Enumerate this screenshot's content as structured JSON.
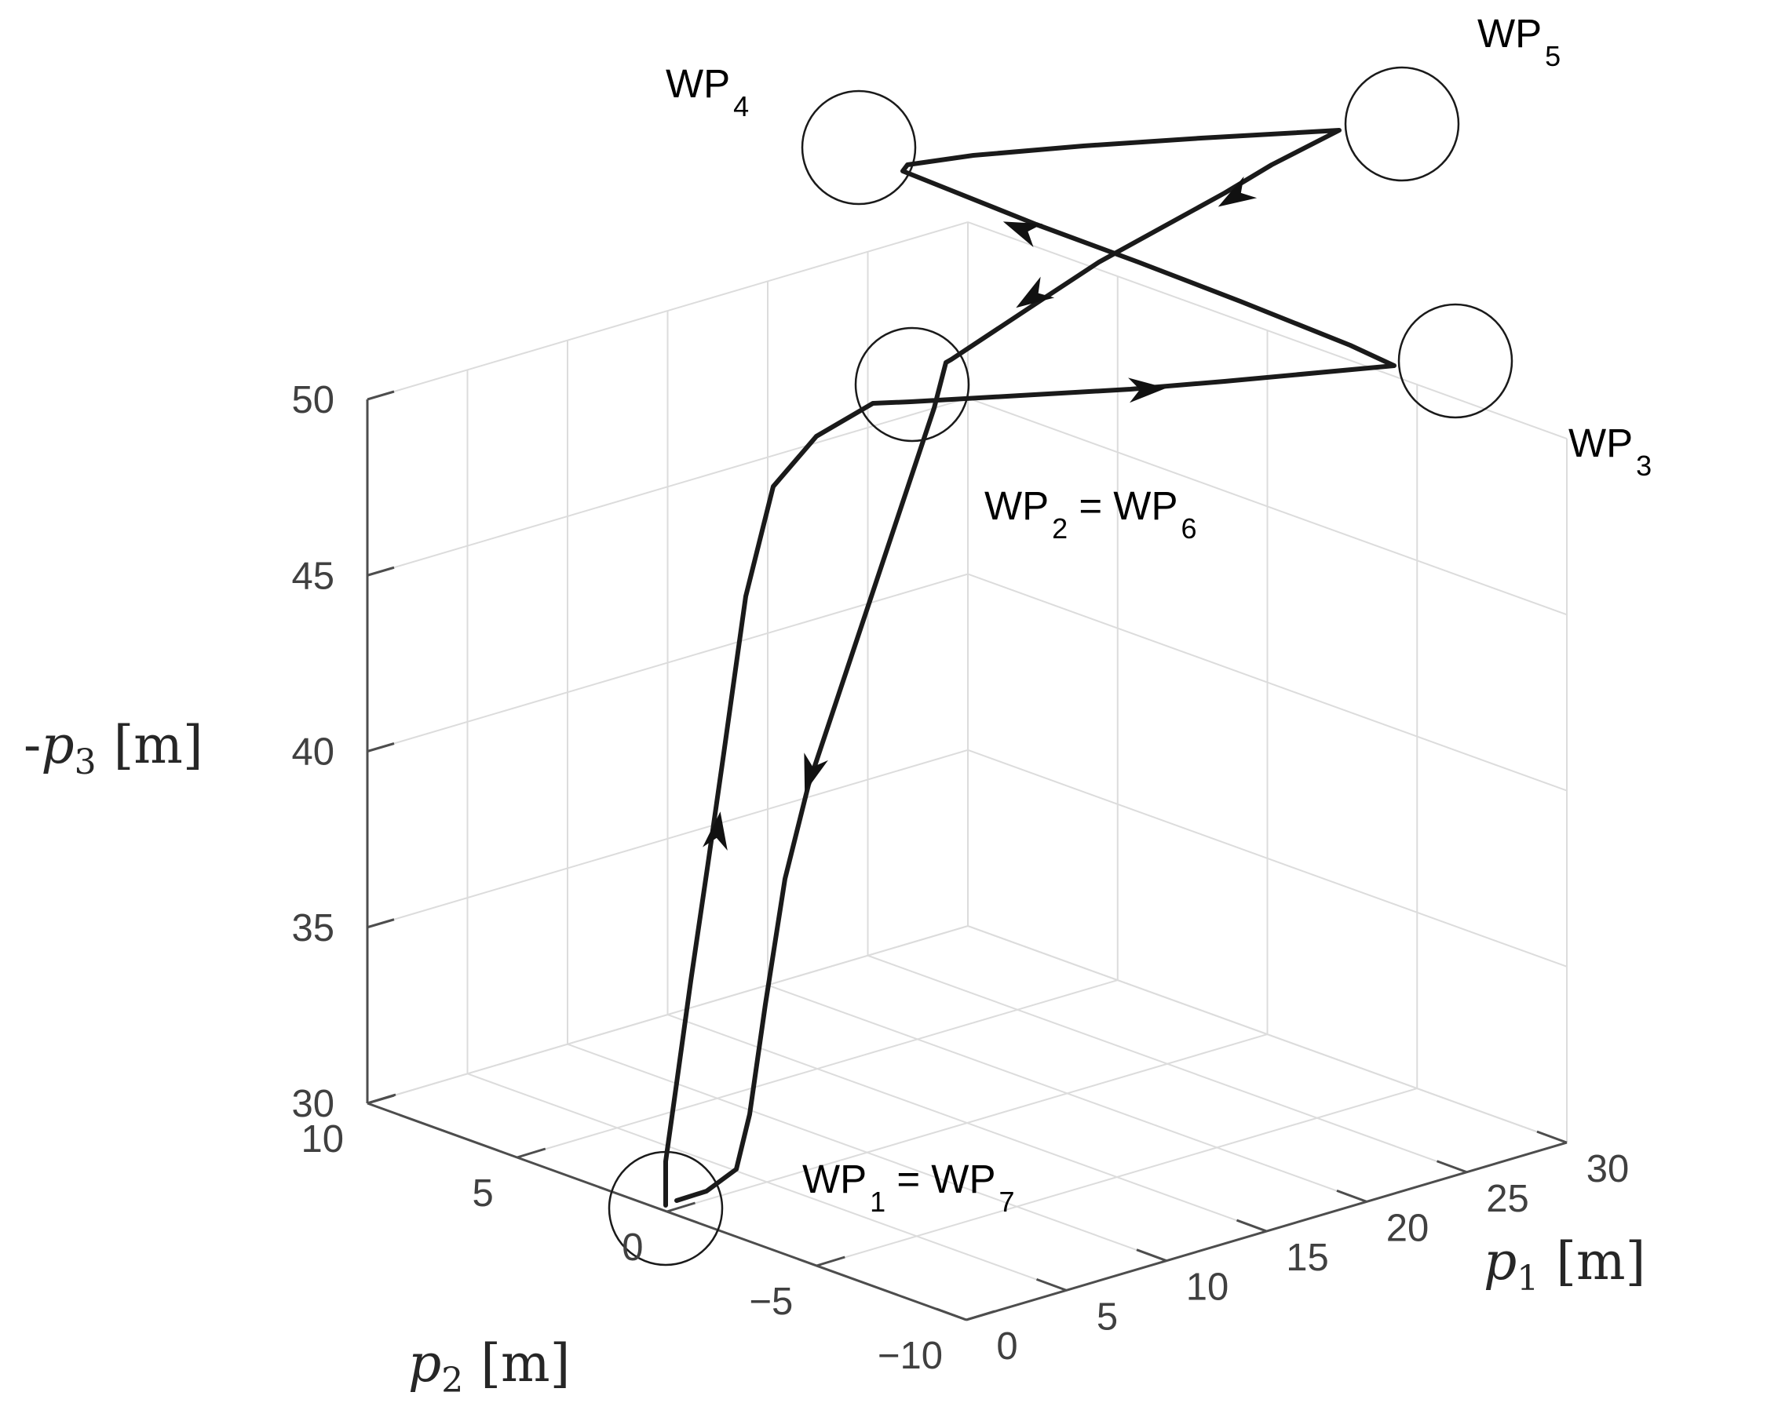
{
  "chart_data": {
    "type": "line3d",
    "axes": {
      "x": {
        "label": "p1",
        "unit": "[m]",
        "range": [
          0,
          30
        ],
        "ticks": [
          0,
          5,
          10,
          15,
          20,
          25,
          30
        ]
      },
      "y": {
        "label": "p2",
        "unit": "[m]",
        "range": [
          -10,
          10
        ],
        "ticks": [
          -10,
          -5,
          0,
          5,
          10
        ]
      },
      "z": {
        "label": "-p3",
        "unit": "[m]",
        "range": [
          30,
          50
        ],
        "ticks": [
          30,
          35,
          40,
          45,
          50
        ]
      }
    },
    "x_tick_labels": [
      "0",
      "5",
      "10",
      "15",
      "20",
      "25",
      "30"
    ],
    "y_tick_labels": [
      "−10",
      "−5",
      "0",
      "5",
      "10"
    ],
    "z_tick_labels": [
      "30",
      "35",
      "40",
      "45",
      "50"
    ],
    "axis_labels": {
      "x": {
        "symbol": "p",
        "sub": "1",
        "unit": "[m]"
      },
      "y": {
        "symbol": "p",
        "sub": "2",
        "unit": "[m]"
      },
      "z": {
        "prefix": "-",
        "symbol": "p",
        "sub": "3",
        "unit": "[m]"
      }
    },
    "grid": true,
    "waypoints": [
      {
        "label": "WP",
        "sub": "1",
        "text2": " = WP",
        "sub2": "7",
        "x": 0,
        "y": 0,
        "z": 30
      },
      {
        "label": "WP",
        "sub": "2",
        "text2": " = WP",
        "sub2": "6",
        "x": 0,
        "y": 0,
        "z": 48
      },
      {
        "label": "WP",
        "sub": "3",
        "text2": "",
        "sub2": "",
        "x": 20,
        "y": -10,
        "z": 48
      },
      {
        "label": "WP",
        "sub": "4",
        "text2": "",
        "sub2": "",
        "x": 20,
        "y": 10,
        "z": 48
      },
      {
        "label": "WP",
        "sub": "5",
        "text2": "",
        "sub2": "",
        "x": 30,
        "y": -5,
        "z": 48
      }
    ],
    "series": [
      {
        "points": [
          [
            0,
            0,
            30
          ],
          [
            0,
            0,
            31.5
          ],
          [
            0,
            0.5,
            35
          ],
          [
            0,
            1,
            38.5
          ],
          [
            0,
            2,
            42.5
          ],
          [
            0,
            3,
            45
          ],
          [
            0,
            2.5,
            46.8
          ],
          [
            0,
            1,
            47.6
          ],
          [
            0,
            0,
            48
          ],
          [
            5,
            -1.5,
            48
          ],
          [
            10,
            -4,
            48
          ],
          [
            15,
            -7,
            48
          ],
          [
            20,
            -10,
            48
          ],
          [
            20,
            -5,
            48
          ],
          [
            20,
            0,
            48
          ],
          [
            20,
            5,
            48
          ],
          [
            20,
            8,
            48
          ],
          [
            20,
            10,
            48
          ],
          [
            22,
            7,
            48
          ],
          [
            25,
            2,
            48
          ],
          [
            28,
            -3,
            48
          ],
          [
            30,
            -5,
            48
          ],
          [
            25,
            -4,
            48
          ],
          [
            20,
            -3,
            48
          ],
          [
            15,
            -2,
            48
          ],
          [
            10,
            -1.5,
            48
          ],
          [
            5,
            -1,
            48
          ],
          [
            0,
            0,
            48
          ],
          [
            0,
            -0.5,
            47
          ],
          [
            0,
            -1.5,
            45
          ],
          [
            0,
            -3,
            42
          ],
          [
            0,
            -4,
            39
          ],
          [
            0,
            -4.5,
            36
          ],
          [
            0,
            -5,
            33
          ],
          [
            0,
            -4.5,
            31
          ],
          [
            0,
            -3,
            30.2
          ],
          [
            0,
            -2,
            30
          ]
        ],
        "arrows_at": [
          4,
          9,
          16,
          22,
          28,
          32
        ]
      }
    ]
  }
}
